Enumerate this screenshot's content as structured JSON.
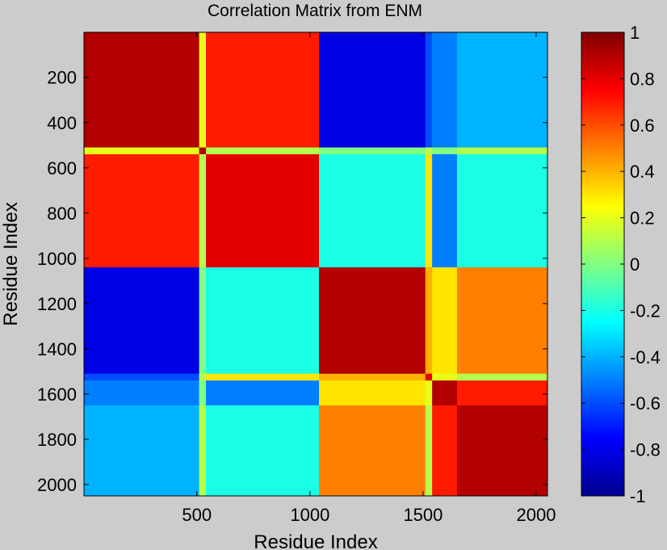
{
  "chart_data": {
    "type": "heatmap",
    "title": "Correlation Matrix from ENM",
    "xlabel": "Residue Index",
    "ylabel": "Residue Index",
    "xlim": [
      1,
      2050
    ],
    "ylim": [
      1,
      2050
    ],
    "y_reversed": true,
    "x_ticks": [
      500,
      1000,
      1500,
      2000
    ],
    "y_ticks": [
      200,
      400,
      600,
      800,
      1000,
      1200,
      1400,
      1600,
      1800,
      2000
    ],
    "domain_boundaries": [
      1,
      510,
      540,
      1040,
      1510,
      1540,
      1650,
      2050
    ],
    "domain_correlation_matrix": [
      [
        0.9,
        0.2,
        0.7,
        -0.8,
        -0.6,
        -0.5,
        -0.4
      ],
      [
        0.2,
        0.9,
        0.1,
        0.0,
        0.1,
        0.0,
        0.1
      ],
      [
        0.7,
        0.1,
        0.8,
        -0.2,
        0.3,
        -0.5,
        -0.2
      ],
      [
        -0.8,
        0.0,
        -0.2,
        0.9,
        0.4,
        0.3,
        0.5
      ],
      [
        -0.6,
        0.1,
        0.3,
        0.4,
        0.8,
        0.2,
        0.1
      ],
      [
        -0.5,
        0.0,
        -0.5,
        0.3,
        0.2,
        0.9,
        0.7
      ],
      [
        -0.4,
        0.1,
        -0.2,
        0.5,
        0.1,
        0.7,
        0.9
      ]
    ],
    "colorbar": {
      "colormap": "jet",
      "range": [
        -1,
        1
      ],
      "ticks": [
        "1",
        "0.8",
        "0.6",
        "0.4",
        "0.2",
        "0",
        "-0.2",
        "-0.4",
        "-0.6",
        "-0.8",
        "-1"
      ]
    }
  }
}
